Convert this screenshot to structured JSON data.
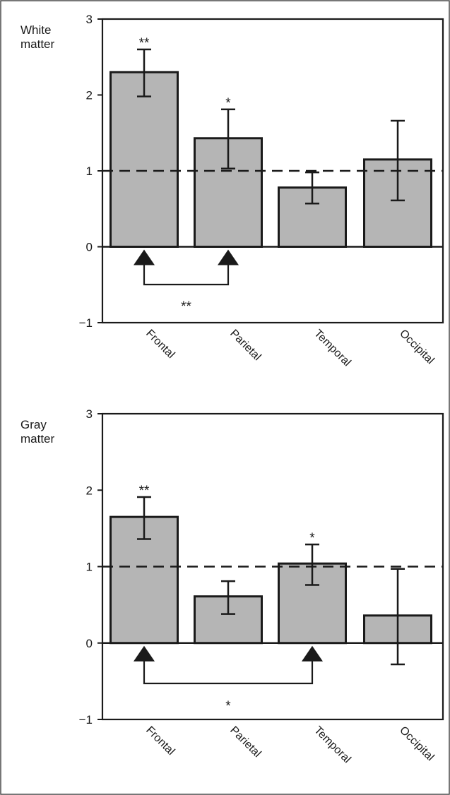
{
  "chart_data": [
    {
      "type": "bar",
      "ylabel": "White\nmatter",
      "categories": [
        "Frontal",
        "Parietal",
        "Temporal",
        "Occipital"
      ],
      "values": [
        2.3,
        1.43,
        0.78,
        1.15
      ],
      "error_low": [
        1.98,
        1.03,
        0.57,
        0.61
      ],
      "error_high": [
        2.6,
        1.81,
        0.98,
        1.66
      ],
      "significance": [
        "**",
        "*",
        "",
        ""
      ],
      "reference_line": 1,
      "ylim": [
        -1,
        3
      ],
      "yticks": [
        "3",
        "2",
        "1",
        "0",
        "−1"
      ],
      "ytick_values": [
        3,
        2,
        1,
        0,
        -1
      ],
      "comparison": {
        "from": "Frontal",
        "to": "Parietal",
        "label": "**"
      }
    },
    {
      "type": "bar",
      "ylabel": "Gray\nmatter",
      "categories": [
        "Frontal",
        "Parietal",
        "Temporal",
        "Occipital"
      ],
      "values": [
        1.65,
        0.61,
        1.04,
        0.36
      ],
      "error_low": [
        1.36,
        0.38,
        0.76,
        -0.28
      ],
      "error_high": [
        1.91,
        0.81,
        1.29,
        0.97
      ],
      "significance": [
        "**",
        "",
        "*",
        ""
      ],
      "reference_line": 1,
      "ylim": [
        -1,
        3
      ],
      "yticks": [
        "3",
        "2",
        "1",
        "0",
        "−1"
      ],
      "ytick_values": [
        3,
        2,
        1,
        0,
        -1
      ],
      "comparison": {
        "from": "Frontal",
        "to": "Temporal",
        "label": "*"
      }
    }
  ],
  "colors": {
    "bar_fill": "#b5b5b5",
    "stroke": "#1a1a1a",
    "background": "#ffffff"
  }
}
